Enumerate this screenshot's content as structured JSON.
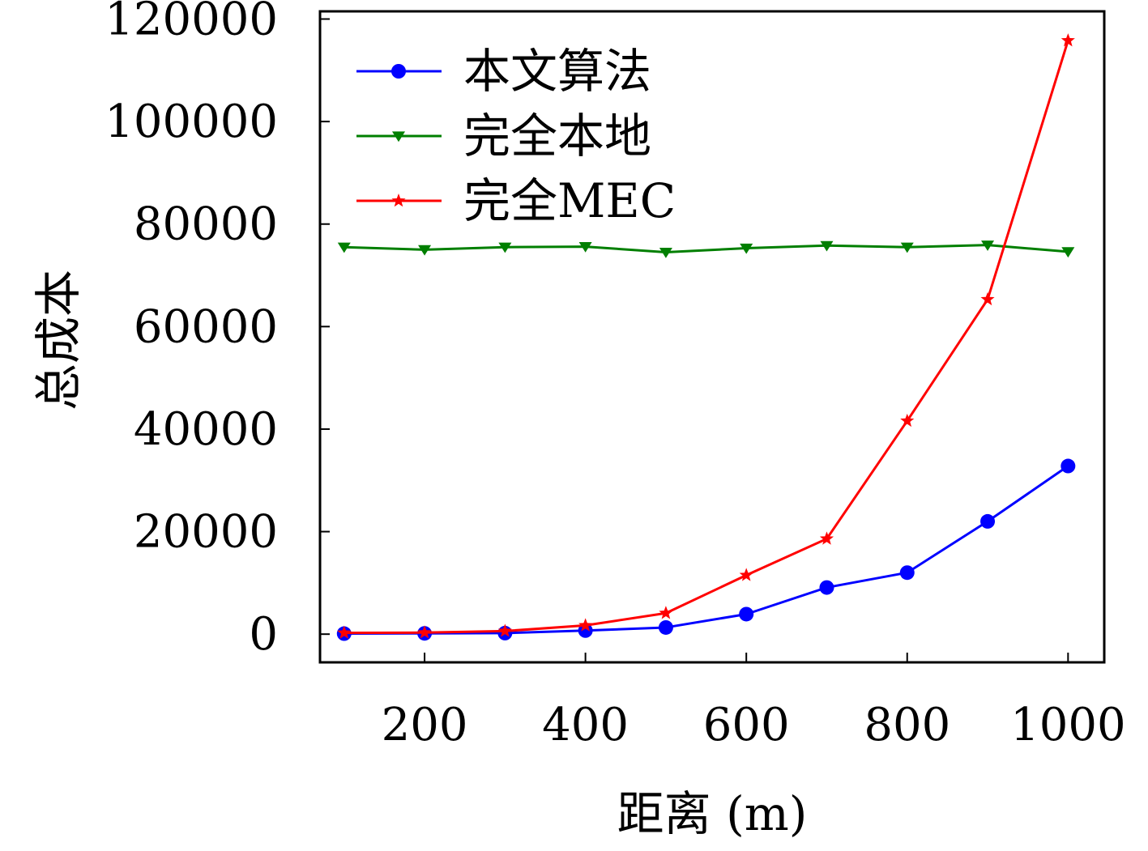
{
  "chart_data": {
    "type": "line",
    "xlabel": "距离 (m)",
    "ylabel": "总成本",
    "x": [
      100,
      200,
      300,
      400,
      500,
      600,
      700,
      800,
      900,
      1000
    ],
    "xlim": [
      70,
      1045
    ],
    "ylim": [
      -5500,
      121500
    ],
    "xticks": [
      200,
      400,
      600,
      800,
      1000
    ],
    "xtick_labels": [
      "200",
      "400",
      "600",
      "800",
      "1000"
    ],
    "yticks": [
      0,
      20000,
      40000,
      60000,
      80000,
      100000,
      120000
    ],
    "ytick_labels": [
      "0",
      "20000",
      "40000",
      "60000",
      "80000",
      "100000",
      "120000"
    ],
    "grid": false,
    "legend_position": "top-left",
    "series": [
      {
        "name": "本文算法",
        "color": "#0000ff",
        "marker": "circle",
        "values": [
          100,
          150,
          200,
          700,
          1300,
          3900,
          9100,
          12000,
          22000,
          32800
        ]
      },
      {
        "name": "完全本地",
        "color": "#007f00",
        "marker": "triangle-down",
        "values": [
          75500,
          75000,
          75500,
          75600,
          74500,
          75300,
          75800,
          75500,
          75900,
          74600
        ]
      },
      {
        "name": "完全MEC",
        "color": "#ff0000",
        "marker": "star",
        "values": [
          250,
          300,
          600,
          1700,
          4100,
          11500,
          18600,
          41600,
          65300,
          115800
        ]
      }
    ]
  }
}
